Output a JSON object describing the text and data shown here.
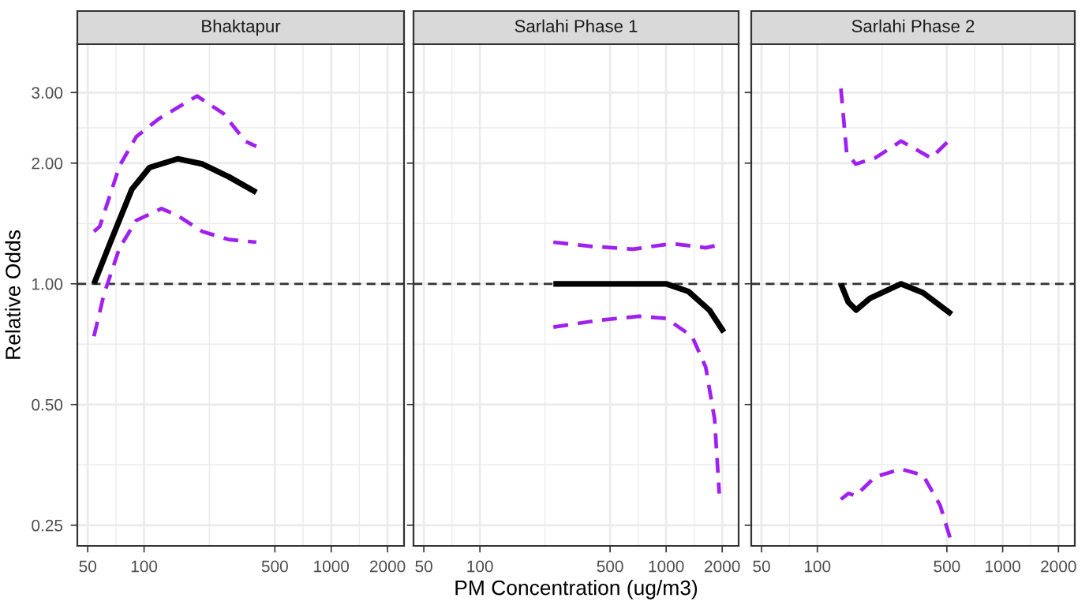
{
  "chart_data": [
    {
      "type": "line",
      "title": "Bhaktapur",
      "ylabel": "Relative Odds",
      "log": "xy",
      "grid": true,
      "xlim": [
        44,
        2450
      ],
      "ylim": [
        0.222,
        3.96
      ],
      "xticks": [
        50,
        100,
        500,
        1000,
        2000
      ],
      "yticks": [
        {
          "value": 0.25,
          "label": "0.25"
        },
        {
          "value": 0.5,
          "label": "0.50"
        },
        {
          "value": 1,
          "label": "1.00"
        },
        {
          "value": 2,
          "label": "2.00"
        },
        {
          "value": 3,
          "label": "3.00"
        }
      ],
      "ref_lines": [
        {
          "axis": "y",
          "value": 1,
          "line_style": "dashed",
          "color": "#333333"
        }
      ],
      "series": [
        {
          "color": "#000000",
          "line_style": "solid",
          "x": [
            54,
            67,
            86,
            107,
            151,
            205,
            283,
            398
          ],
          "values": [
            1.0,
            1.29,
            1.72,
            1.95,
            2.05,
            1.99,
            1.85,
            1.69
          ]
        },
        {
          "color": "#a020f0",
          "line_style": "dashed",
          "x": [
            54,
            58,
            74,
            91,
            120,
            192,
            265,
            347,
            398
          ],
          "values": [
            1.35,
            1.39,
            1.97,
            2.33,
            2.58,
            2.94,
            2.66,
            2.27,
            2.2
          ]
        },
        {
          "color": "#a020f0",
          "line_style": "dashed",
          "x": [
            54,
            61,
            74,
            91,
            124,
            151,
            205,
            283,
            398
          ],
          "values": [
            0.74,
            0.94,
            1.23,
            1.44,
            1.54,
            1.48,
            1.35,
            1.29,
            1.27
          ]
        }
      ]
    },
    {
      "type": "line",
      "title": "Sarlahi Phase 1",
      "xlabel": "PM Concentration (ug/m3)",
      "log": "xy",
      "grid": true,
      "tick_labels": "x",
      "xlim": [
        44,
        2450
      ],
      "ylim": [
        0.222,
        3.96
      ],
      "xticks": [
        50,
        100,
        500,
        1000,
        2000
      ],
      "yticks": [
        {
          "value": 0.25,
          "label": null
        },
        {
          "value": 0.5,
          "label": null
        },
        {
          "value": 1,
          "label": null
        },
        {
          "value": 2,
          "label": null
        },
        {
          "value": 3,
          "label": null
        }
      ],
      "ref_lines": [
        {
          "axis": "y",
          "value": 1,
          "line_style": "dashed",
          "color": "#333333"
        }
      ],
      "series": [
        {
          "color": "#000000",
          "line_style": "solid",
          "x": [
            248,
            530,
            1000,
            1321,
            1706,
            2041
          ],
          "values": [
            1.0,
            1.0,
            1.0,
            0.956,
            0.86,
            0.758
          ]
        },
        {
          "color": "#a020f0",
          "line_style": "dashed",
          "x": [
            248,
            398,
            665,
            1069,
            1631,
            1910
          ],
          "values": [
            1.27,
            1.24,
            1.22,
            1.26,
            1.23,
            1.25
          ]
        },
        {
          "color": "#a020f0",
          "line_style": "dashed",
          "x": [
            248,
            427,
            716,
            1000,
            1377,
            1631,
            1820,
            1928
          ],
          "values": [
            0.78,
            0.81,
            0.83,
            0.82,
            0.74,
            0.62,
            0.46,
            0.3
          ]
        }
      ]
    },
    {
      "type": "line",
      "title": "Sarlahi Phase 2",
      "log": "xy",
      "grid": true,
      "tick_labels": "x",
      "xlim": [
        44,
        2450
      ],
      "ylim": [
        0.222,
        3.96
      ],
      "xticks": [
        50,
        100,
        500,
        1000,
        2000
      ],
      "yticks": [
        {
          "value": 0.25,
          "label": null
        },
        {
          "value": 0.5,
          "label": null
        },
        {
          "value": 1,
          "label": null
        },
        {
          "value": 2,
          "label": null
        },
        {
          "value": 3,
          "label": null
        }
      ],
      "ref_lines": [
        {
          "axis": "y",
          "value": 1,
          "line_style": "dashed",
          "color": "#333333"
        }
      ],
      "series": [
        {
          "color": "#000000",
          "line_style": "solid",
          "x": [
            134,
            147,
            162,
            192,
            283,
            372,
            530
          ],
          "values": [
            1.0,
            0.9,
            0.86,
            0.92,
            1.0,
            0.95,
            0.84
          ]
        },
        {
          "color": "#a020f0",
          "line_style": "dashed",
          "x": [
            134,
            144,
            161,
            205,
            283,
            411,
            530
          ],
          "values": [
            3.07,
            2.12,
            1.99,
            2.06,
            2.27,
            2.06,
            2.31
          ]
        },
        {
          "color": "#a020f0",
          "line_style": "dashed",
          "x": [
            134,
            147,
            161,
            205,
            283,
            372,
            460,
            527
          ],
          "values": [
            0.29,
            0.3,
            0.296,
            0.33,
            0.345,
            0.333,
            0.28,
            0.228
          ]
        }
      ]
    }
  ]
}
